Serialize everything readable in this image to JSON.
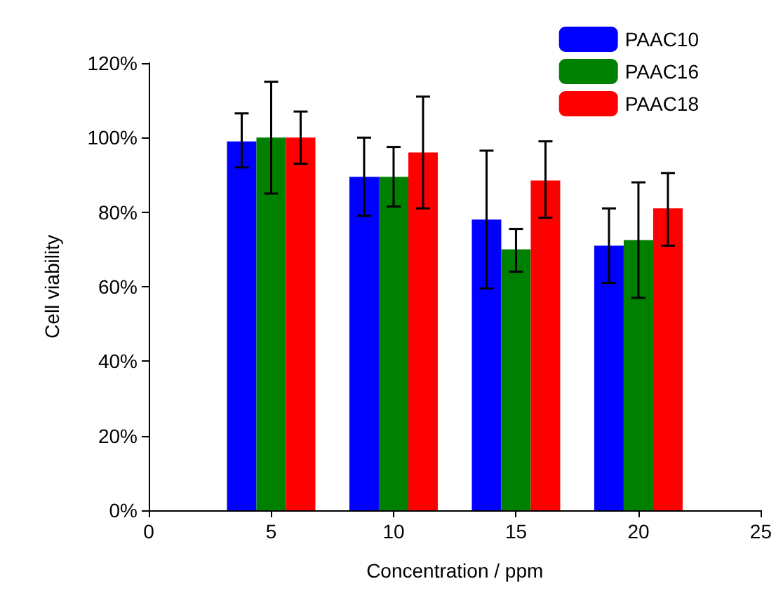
{
  "chart_data": {
    "type": "bar",
    "xlabel": "Concentration / ppm",
    "ylabel": "Cell viability",
    "x": [
      5,
      10,
      15,
      20
    ],
    "xlim": [
      0,
      25
    ],
    "xticks": [
      0,
      5,
      10,
      15,
      20,
      25
    ],
    "ylim": [
      0,
      120
    ],
    "yticks": [
      {
        "value": 0,
        "label": "0%"
      },
      {
        "value": 20,
        "label": "20%"
      },
      {
        "value": 40,
        "label": "40%"
      },
      {
        "value": 60,
        "label": "60%"
      },
      {
        "value": 80,
        "label": "80%"
      },
      {
        "value": 100,
        "label": "100%"
      },
      {
        "value": 120,
        "label": "120%"
      }
    ],
    "series": [
      {
        "name": "PAAC10",
        "color": "#0000ff",
        "values": [
          99,
          89.5,
          78,
          71
        ],
        "errors": [
          [
            92,
            106.5
          ],
          [
            79,
            100
          ],
          [
            59.5,
            96.5
          ],
          [
            61,
            81
          ]
        ]
      },
      {
        "name": "PAAC16",
        "color": "#008000",
        "values": [
          100,
          89.5,
          70,
          72.5
        ],
        "errors": [
          [
            85,
            115
          ],
          [
            81.5,
            97.5
          ],
          [
            64,
            75.5
          ],
          [
            57,
            88
          ]
        ]
      },
      {
        "name": "PAAC18",
        "color": "#ff0000",
        "values": [
          100,
          96,
          88.5,
          81
        ],
        "errors": [
          [
            93,
            107
          ],
          [
            81,
            111
          ],
          [
            78.5,
            99
          ],
          [
            71,
            90.5
          ]
        ]
      }
    ],
    "legend": "top right",
    "grid": false
  }
}
